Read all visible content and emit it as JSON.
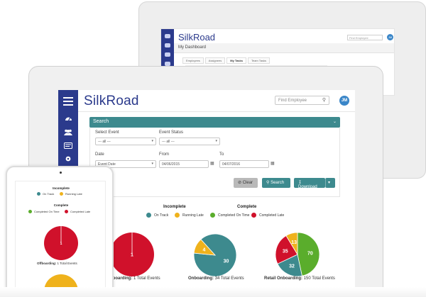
{
  "back_screen": {
    "logo": "SilkRoad",
    "search_placeholder": "Find Employee",
    "avatar_initials": "JM",
    "title": "My Dashboard",
    "tabs": [
      {
        "label": "Employees",
        "active": false
      },
      {
        "label": "Assignees",
        "active": false
      },
      {
        "label": "My Tasks",
        "active": true
      },
      {
        "label": "Team Tasks",
        "active": false
      }
    ]
  },
  "header": {
    "logo": "SilkRoad",
    "search_placeholder": "Find Employee",
    "avatar_initials": "JM"
  },
  "sidebar": {
    "icons": [
      "menu-icon",
      "dashboard-icon",
      "people-icon",
      "id-card-icon",
      "settings-icon",
      "more-icon"
    ]
  },
  "search_panel": {
    "title": "Search",
    "select_event_label": "Select Event",
    "select_event_value": "--- all ---",
    "event_status_label": "Event Status",
    "event_status_value": "--- all ---",
    "date_label": "Date",
    "date_value": "Event Date",
    "from_label": "From",
    "from_value": "04/06/2015",
    "to_label": "To",
    "to_value": "04/07/2016",
    "clear_label": "Clear",
    "search_label": "Search",
    "download_label": "Download"
  },
  "legend": {
    "incomplete_title": "Incomplete",
    "complete_title": "Complete",
    "on_track": "On Track",
    "running_late": "Running Late",
    "completed_on_time": "Completed On Time",
    "completed_late": "Completed Late"
  },
  "colors": {
    "on_track": "#3d8a8e",
    "running_late": "#efb21c",
    "completed_on_time": "#5aad2c",
    "completed_late": "#d0112b",
    "brand": "#2b3a8c"
  },
  "charts": {
    "offboarding": {
      "label": "Offboarding:",
      "summary": "1 Total Events"
    },
    "onboarding": {
      "label": "Onboarding:",
      "summary": "34 Total Events"
    },
    "retail": {
      "label": "Retail Onboarding:",
      "summary": "150 Total Events"
    }
  },
  "chart_data": [
    {
      "type": "pie",
      "title": "Offboarding",
      "categories": [
        "Completed Late"
      ],
      "values": [
        1
      ]
    },
    {
      "type": "pie",
      "title": "Onboarding",
      "categories": [
        "On Track",
        "Running Late"
      ],
      "values": [
        30,
        4
      ]
    },
    {
      "type": "pie",
      "title": "Retail Onboarding",
      "categories": [
        "Completed On Time",
        "On Track",
        "Completed Late",
        "Running Late"
      ],
      "values": [
        70,
        32,
        35,
        13
      ]
    }
  ]
}
